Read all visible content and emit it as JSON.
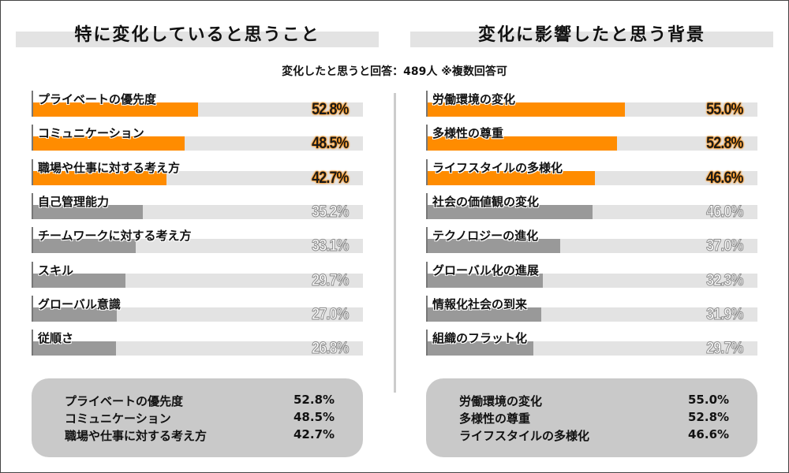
{
  "note": "変化したと思うと回答：489人 ※複数回答可",
  "colors": {
    "highlight": "#ff8c00",
    "normal": "#999999",
    "track": "#e3e3e3"
  },
  "chart_data": [
    {
      "type": "bar",
      "orientation": "horizontal",
      "title": "特に変化していると思うこと",
      "xlim": [
        0,
        105
      ],
      "categories": [
        "プライベートの優先度",
        "コミュニケーション",
        "職場や仕事に対する考え方",
        "自己管理能力",
        "チームワークに対する考え方",
        "スキル",
        "グローバル意識",
        "従順さ"
      ],
      "values": [
        52.8,
        48.5,
        42.7,
        35.2,
        33.1,
        29.7,
        27.0,
        26.8
      ],
      "labels": [
        "52.8%",
        "48.5%",
        "42.7%",
        "35.2%",
        "33.1%",
        "29.7%",
        "27.0%",
        "26.8%"
      ],
      "highlighted": 3
    },
    {
      "type": "bar",
      "orientation": "horizontal",
      "title": "変化に影響したと思う背景",
      "xlim": [
        0,
        91.6
      ],
      "categories": [
        "労働環境の変化",
        "多様性の尊重",
        "ライフスタイルの多様化",
        "社会の価値観の変化",
        "テクノロジーの進化",
        "グローバル化の進展",
        "情報化社会の到来",
        "組織のフラット化"
      ],
      "values": [
        55.0,
        52.8,
        46.6,
        46.0,
        37.0,
        32.3,
        31.9,
        29.7
      ],
      "labels": [
        "55.0%",
        "52.8%",
        "46.6%",
        "46.0%",
        "37.0%",
        "32.3%",
        "31.9%",
        "29.7%"
      ],
      "highlighted": 3
    }
  ],
  "summary": [
    [
      {
        "name": "プライベートの優先度",
        "value": "52.8%"
      },
      {
        "name": "コミュニケーション",
        "value": "48.5%"
      },
      {
        "name": "職場や仕事に対する考え方",
        "value": "42.7%"
      }
    ],
    [
      {
        "name": "労働環境の変化",
        "value": "55.0%"
      },
      {
        "name": "多様性の尊重",
        "value": "52.8%"
      },
      {
        "name": "ライフスタイルの多様化",
        "value": "46.6%"
      }
    ]
  ]
}
